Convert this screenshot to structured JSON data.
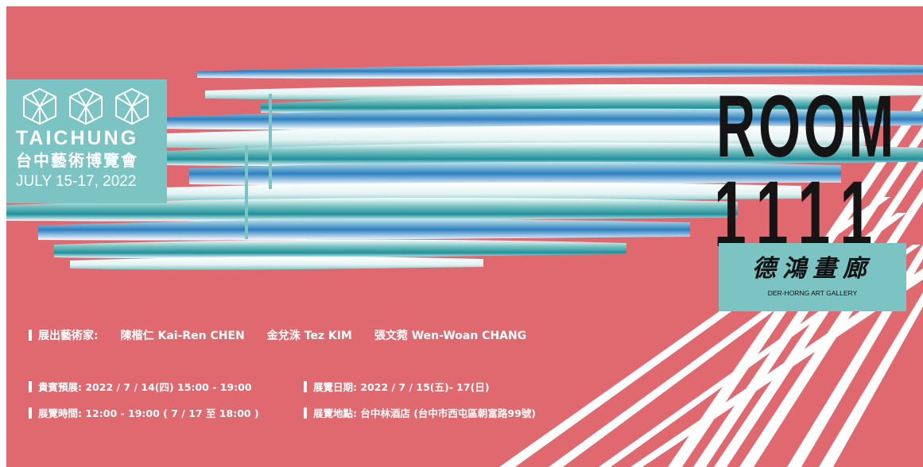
{
  "fair": {
    "name_en": "TAICHUNG",
    "name_zh": "台中藝術博覽會",
    "dates": "JULY 15-17, 2022"
  },
  "room": {
    "word": "ROOM",
    "number": "1111"
  },
  "gallery": {
    "name_zh": "德鴻畫廊",
    "name_en": "DER-HORNG ART GALLERY"
  },
  "artists": {
    "label": "展出藝術家:",
    "list": [
      "陳楷仁 Kai-Ren CHEN",
      "金兌洙 Tez KIM",
      "張文菀 Wen-Woan CHANG"
    ]
  },
  "info": {
    "vip": "貴賓預展: 2022 / 7 / 14(四) 15:00 - 19:00",
    "exhibition_dates": "展覽日期: 2022 / 7 / 15(五)- 17(日)",
    "hours": "展覽時間: 12:00 - 19:00 ( 7 / 17 至 18:00 )",
    "venue": "展覽地點: 台中林酒店 (台中市西屯區朝富路99號)"
  },
  "colors": {
    "background": "#e0686f",
    "teal": "#7bc4c3",
    "blue": "#2c7fc0",
    "white": "#ffffff",
    "black": "#141414"
  }
}
